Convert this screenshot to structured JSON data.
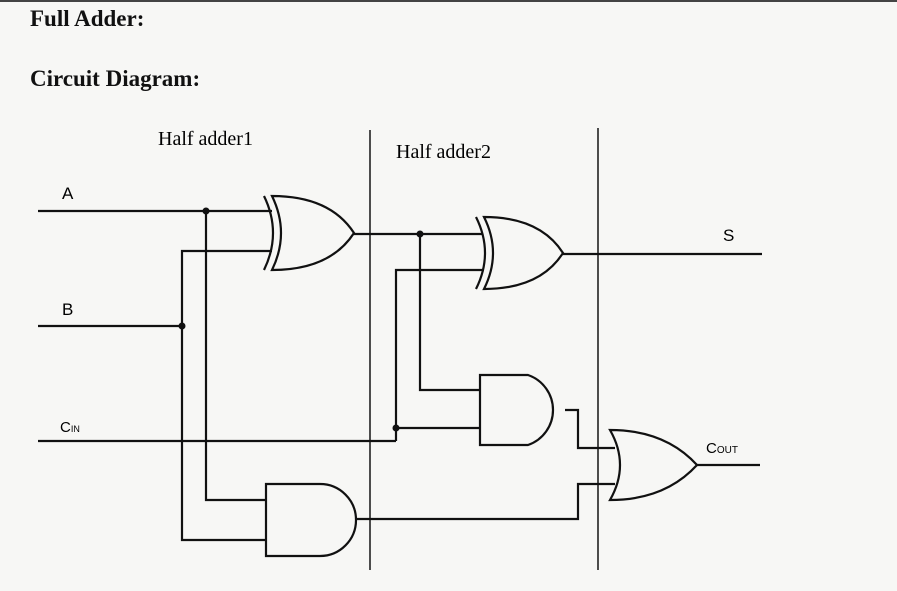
{
  "page": {
    "title": "Full Adder:",
    "section": "Circuit Diagram:"
  },
  "diagram": {
    "stages": [
      "Half adder1",
      "Half adder2"
    ],
    "inputs": {
      "a": "A",
      "b": "B",
      "cin_main": "C",
      "cin_sub": "IN"
    },
    "outputs": {
      "sum": "S",
      "cout_main": "C",
      "cout_sub": "OUT"
    },
    "gates": [
      "XOR",
      "XOR",
      "AND",
      "AND",
      "OR"
    ]
  }
}
